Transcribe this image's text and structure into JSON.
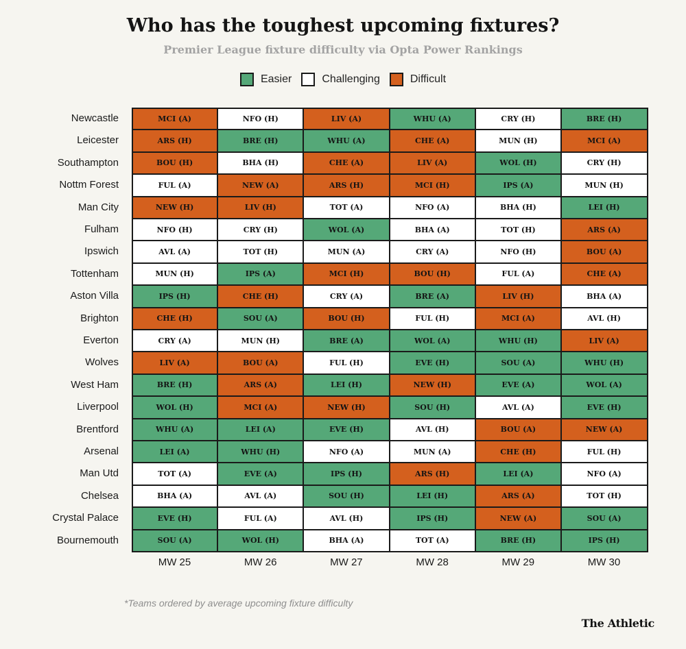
{
  "header": {
    "title": "Who has the toughest upcoming fixtures?",
    "subtitle": "Premier League fixture difficulty via Opta Power Rankings"
  },
  "legend": [
    {
      "label": "Easier",
      "level": "easier"
    },
    {
      "label": "Challenging",
      "level": "challenging"
    },
    {
      "label": "Difficult",
      "level": "difficult"
    }
  ],
  "colors": {
    "easier": "#55a878",
    "challenging": "#ffffff",
    "difficult": "#d4601e",
    "grid": "#1a1a1a",
    "background": "#f6f5f0"
  },
  "chart_data": {
    "type": "table",
    "title": "Who has the toughest upcoming fixtures?",
    "subtitle": "Premier League fixture difficulty via Opta Power Rankings",
    "columns": [
      "MW 25",
      "MW 26",
      "MW 27",
      "MW 28",
      "MW 29",
      "MW 30"
    ],
    "rows": [
      {
        "team": "Newcastle",
        "fixtures": [
          [
            "MCI (A)",
            "D"
          ],
          [
            "NFO (H)",
            "C"
          ],
          [
            "LIV (A)",
            "D"
          ],
          [
            "WHU (A)",
            "E"
          ],
          [
            "CRY (H)",
            "C"
          ],
          [
            "BRE (H)",
            "E"
          ]
        ]
      },
      {
        "team": "Leicester",
        "fixtures": [
          [
            "ARS (H)",
            "D"
          ],
          [
            "BRE (H)",
            "E"
          ],
          [
            "WHU (A)",
            "E"
          ],
          [
            "CHE (A)",
            "D"
          ],
          [
            "MUN (H)",
            "C"
          ],
          [
            "MCI (A)",
            "D"
          ]
        ]
      },
      {
        "team": "Southampton",
        "fixtures": [
          [
            "BOU (H)",
            "D"
          ],
          [
            "BHA (H)",
            "C"
          ],
          [
            "CHE (A)",
            "D"
          ],
          [
            "LIV (A)",
            "D"
          ],
          [
            "WOL (H)",
            "E"
          ],
          [
            "CRY (H)",
            "C"
          ]
        ]
      },
      {
        "team": "Nottm Forest",
        "fixtures": [
          [
            "FUL (A)",
            "C"
          ],
          [
            "NEW (A)",
            "D"
          ],
          [
            "ARS (H)",
            "D"
          ],
          [
            "MCI (H)",
            "D"
          ],
          [
            "IPS (A)",
            "E"
          ],
          [
            "MUN (H)",
            "C"
          ]
        ]
      },
      {
        "team": "Man City",
        "fixtures": [
          [
            "NEW (H)",
            "D"
          ],
          [
            "LIV (H)",
            "D"
          ],
          [
            "TOT (A)",
            "C"
          ],
          [
            "NFO (A)",
            "C"
          ],
          [
            "BHA (H)",
            "C"
          ],
          [
            "LEI (H)",
            "E"
          ]
        ]
      },
      {
        "team": "Fulham",
        "fixtures": [
          [
            "NFO (H)",
            "C"
          ],
          [
            "CRY (H)",
            "C"
          ],
          [
            "WOL (A)",
            "E"
          ],
          [
            "BHA (A)",
            "C"
          ],
          [
            "TOT (H)",
            "C"
          ],
          [
            "ARS (A)",
            "D"
          ]
        ]
      },
      {
        "team": "Ipswich",
        "fixtures": [
          [
            "AVL (A)",
            "C"
          ],
          [
            "TOT (H)",
            "C"
          ],
          [
            "MUN (A)",
            "C"
          ],
          [
            "CRY (A)",
            "C"
          ],
          [
            "NFO (H)",
            "C"
          ],
          [
            "BOU (A)",
            "D"
          ]
        ]
      },
      {
        "team": "Tottenham",
        "fixtures": [
          [
            "MUN (H)",
            "C"
          ],
          [
            "IPS (A)",
            "E"
          ],
          [
            "MCI (H)",
            "D"
          ],
          [
            "BOU (H)",
            "D"
          ],
          [
            "FUL (A)",
            "C"
          ],
          [
            "CHE (A)",
            "D"
          ]
        ]
      },
      {
        "team": "Aston Villa",
        "fixtures": [
          [
            "IPS (H)",
            "E"
          ],
          [
            "CHE (H)",
            "D"
          ],
          [
            "CRY (A)",
            "C"
          ],
          [
            "BRE (A)",
            "E"
          ],
          [
            "LIV (H)",
            "D"
          ],
          [
            "BHA (A)",
            "C"
          ]
        ]
      },
      {
        "team": "Brighton",
        "fixtures": [
          [
            "CHE (H)",
            "D"
          ],
          [
            "SOU (A)",
            "E"
          ],
          [
            "BOU (H)",
            "D"
          ],
          [
            "FUL (H)",
            "C"
          ],
          [
            "MCI (A)",
            "D"
          ],
          [
            "AVL (H)",
            "C"
          ]
        ]
      },
      {
        "team": "Everton",
        "fixtures": [
          [
            "CRY (A)",
            "C"
          ],
          [
            "MUN (H)",
            "C"
          ],
          [
            "BRE (A)",
            "E"
          ],
          [
            "WOL (A)",
            "E"
          ],
          [
            "WHU (H)",
            "E"
          ],
          [
            "LIV (A)",
            "D"
          ]
        ]
      },
      {
        "team": "Wolves",
        "fixtures": [
          [
            "LIV (A)",
            "D"
          ],
          [
            "BOU (A)",
            "D"
          ],
          [
            "FUL (H)",
            "C"
          ],
          [
            "EVE (H)",
            "E"
          ],
          [
            "SOU (A)",
            "E"
          ],
          [
            "WHU (H)",
            "E"
          ]
        ]
      },
      {
        "team": "West Ham",
        "fixtures": [
          [
            "BRE (H)",
            "E"
          ],
          [
            "ARS (A)",
            "D"
          ],
          [
            "LEI (H)",
            "E"
          ],
          [
            "NEW (H)",
            "D"
          ],
          [
            "EVE (A)",
            "E"
          ],
          [
            "WOL (A)",
            "E"
          ]
        ]
      },
      {
        "team": "Liverpool",
        "fixtures": [
          [
            "WOL (H)",
            "E"
          ],
          [
            "MCI (A)",
            "D"
          ],
          [
            "NEW (H)",
            "D"
          ],
          [
            "SOU (H)",
            "E"
          ],
          [
            "AVL (A)",
            "C"
          ],
          [
            "EVE (H)",
            "E"
          ]
        ]
      },
      {
        "team": "Brentford",
        "fixtures": [
          [
            "WHU (A)",
            "E"
          ],
          [
            "LEI (A)",
            "E"
          ],
          [
            "EVE (H)",
            "E"
          ],
          [
            "AVL (H)",
            "C"
          ],
          [
            "BOU (A)",
            "D"
          ],
          [
            "NEW (A)",
            "D"
          ]
        ]
      },
      {
        "team": "Arsenal",
        "fixtures": [
          [
            "LEI (A)",
            "E"
          ],
          [
            "WHU (H)",
            "E"
          ],
          [
            "NFO (A)",
            "C"
          ],
          [
            "MUN (A)",
            "C"
          ],
          [
            "CHE (H)",
            "D"
          ],
          [
            "FUL (H)",
            "C"
          ]
        ]
      },
      {
        "team": "Man Utd",
        "fixtures": [
          [
            "TOT (A)",
            "C"
          ],
          [
            "EVE (A)",
            "E"
          ],
          [
            "IPS (H)",
            "E"
          ],
          [
            "ARS (H)",
            "D"
          ],
          [
            "LEI (A)",
            "E"
          ],
          [
            "NFO (A)",
            "C"
          ]
        ]
      },
      {
        "team": "Chelsea",
        "fixtures": [
          [
            "BHA (A)",
            "C"
          ],
          [
            "AVL (A)",
            "C"
          ],
          [
            "SOU (H)",
            "E"
          ],
          [
            "LEI (H)",
            "E"
          ],
          [
            "ARS (A)",
            "D"
          ],
          [
            "TOT (H)",
            "C"
          ]
        ]
      },
      {
        "team": "Crystal Palace",
        "fixtures": [
          [
            "EVE (H)",
            "E"
          ],
          [
            "FUL (A)",
            "C"
          ],
          [
            "AVL (H)",
            "C"
          ],
          [
            "IPS (H)",
            "E"
          ],
          [
            "NEW (A)",
            "D"
          ],
          [
            "SOU (A)",
            "E"
          ]
        ]
      },
      {
        "team": "Bournemouth",
        "fixtures": [
          [
            "SOU (A)",
            "E"
          ],
          [
            "WOL (H)",
            "E"
          ],
          [
            "BHA (A)",
            "C"
          ],
          [
            "TOT (A)",
            "C"
          ],
          [
            "BRE (H)",
            "E"
          ],
          [
            "IPS (H)",
            "E"
          ]
        ]
      }
    ],
    "difficulty_codes": {
      "E": "Easier",
      "C": "Challenging",
      "D": "Difficult"
    }
  },
  "footer": {
    "note": "*Teams ordered by average upcoming fixture difficulty",
    "logo": "The Athletic"
  }
}
